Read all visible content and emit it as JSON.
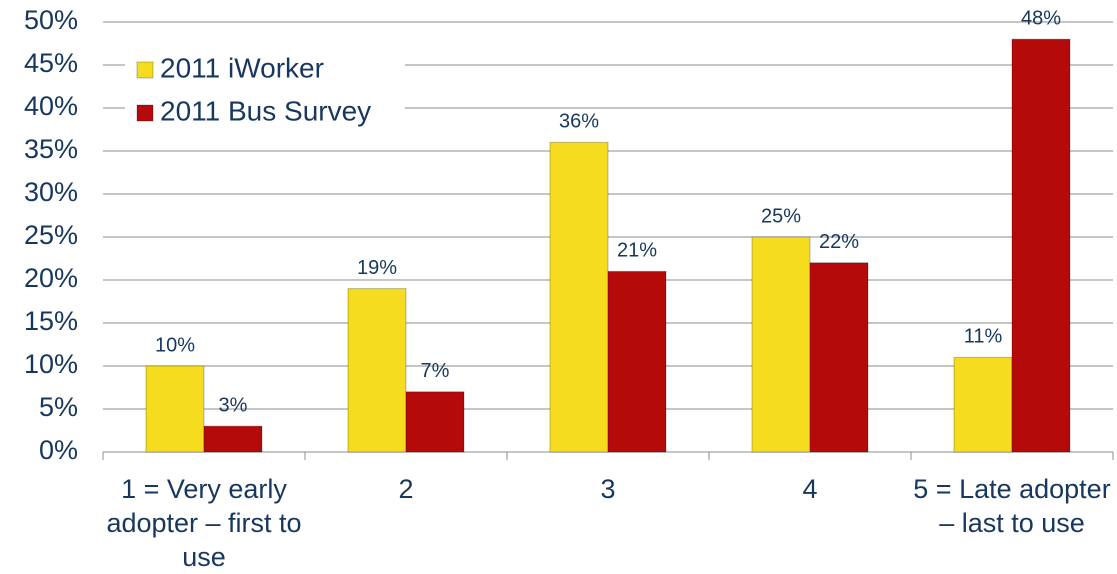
{
  "chart_data": {
    "type": "bar",
    "categories": [
      "1 = Very early adopter – first to use",
      "2",
      "3",
      "4",
      "5 = Late adopter – last to use"
    ],
    "series": [
      {
        "name": "2011 iWorker",
        "color": "#f5dc1e",
        "values": [
          10,
          19,
          36,
          25,
          11
        ],
        "value_labels": [
          "10%",
          "19%",
          "36%",
          "25%",
          "11%"
        ]
      },
      {
        "name": "2011 Bus Survey",
        "color": "#b40a0a",
        "values": [
          3,
          7,
          21,
          22,
          48
        ],
        "value_labels": [
          "3%",
          "7%",
          "21%",
          "22%",
          "48%"
        ]
      }
    ],
    "ylim": [
      0,
      50
    ],
    "yticks": [
      {
        "value": 0,
        "label": "0%"
      },
      {
        "value": 5,
        "label": "5%"
      },
      {
        "value": 10,
        "label": "10%"
      },
      {
        "value": 15,
        "label": "15%"
      },
      {
        "value": 20,
        "label": "20%"
      },
      {
        "value": 25,
        "label": "25%"
      },
      {
        "value": 30,
        "label": "30%"
      },
      {
        "value": 35,
        "label": "35%"
      },
      {
        "value": 40,
        "label": "40%"
      },
      {
        "value": 45,
        "label": "45%"
      },
      {
        "value": 50,
        "label": "50%"
      }
    ],
    "grid": true,
    "legend": "upper-left"
  }
}
